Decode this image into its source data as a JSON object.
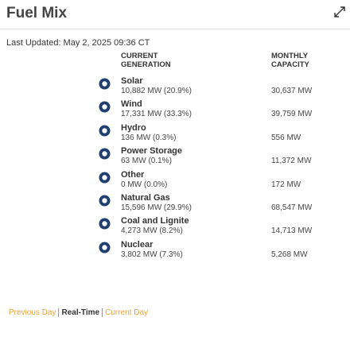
{
  "header": {
    "title": "Fuel Mix"
  },
  "last_updated": "Last Updated: May 2, 2025 09:36 CT",
  "columns": {
    "generation": "CURRENT GENERATION",
    "capacity": "MONTHLY CAPACITY"
  },
  "rows": [
    {
      "name": "Solar",
      "generation": "10,882 MW (20.9%)",
      "capacity": "30,637 MW"
    },
    {
      "name": "Wind",
      "generation": "17,331 MW (33.3%)",
      "capacity": "39,759 MW"
    },
    {
      "name": "Hydro",
      "generation": "136 MW (0.3%)",
      "capacity": "556 MW"
    },
    {
      "name": "Power Storage",
      "generation": "63 MW (0.1%)",
      "capacity": "11,372 MW"
    },
    {
      "name": "Other",
      "generation": "0 MW (0.0%)",
      "capacity": "172 MW"
    },
    {
      "name": "Natural Gas",
      "generation": "15,596 MW (29.9%)",
      "capacity": "68,547 MW"
    },
    {
      "name": "Coal and Lignite",
      "generation": "4,273 MW (8.2%)",
      "capacity": "14,713 MW"
    },
    {
      "name": "Nuclear",
      "generation": "3,802 MW (7.3%)",
      "capacity": "5,268 MW"
    }
  ],
  "tabs": [
    "Previous Day",
    "Real-Time",
    "Current Day"
  ]
}
